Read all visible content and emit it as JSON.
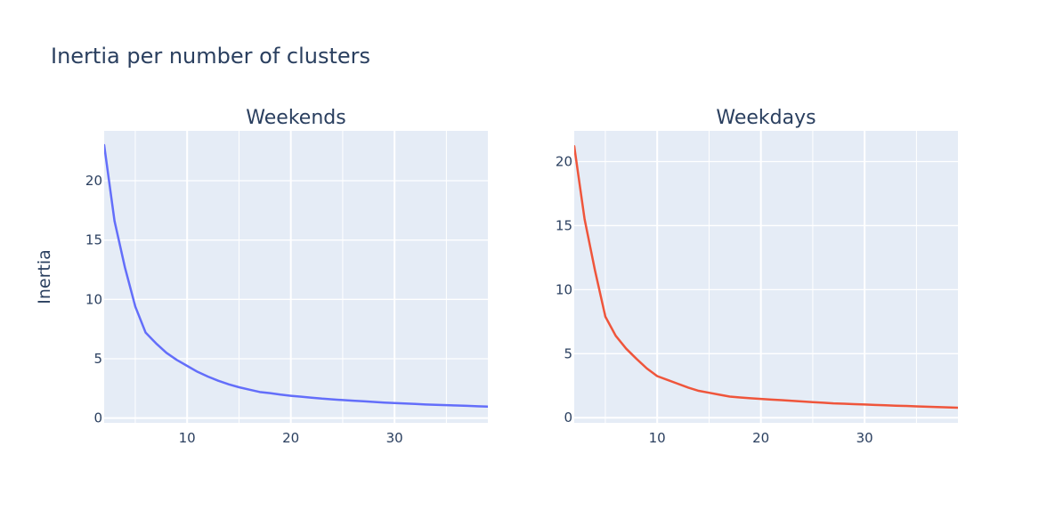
{
  "chart_data": {
    "type": "line",
    "title": "Inertia per number of clusters",
    "ylabel": "Inertia",
    "grid": true,
    "legend": "none",
    "subplots": [
      {
        "title": "Weekends",
        "xlim": [
          2,
          39
        ],
        "ylim": [
          -0.4,
          24.2
        ],
        "xticks": [
          10,
          20,
          30
        ],
        "yticks": [
          0,
          5,
          10,
          15,
          20
        ],
        "series": [
          {
            "color": "#636efa",
            "x": [
              2,
              3,
              4,
              5,
              6,
              7,
              8,
              9,
              10,
              11,
              12,
              13,
              14,
              15,
              16,
              17,
              18,
              19,
              20,
              21,
              22,
              23,
              24,
              25,
              26,
              27,
              28,
              29,
              30,
              31,
              32,
              33,
              34,
              35,
              36,
              37,
              38,
              39
            ],
            "y": [
              23.0,
              16.6,
              12.7,
              9.4,
              7.2,
              6.3,
              5.5,
              4.9,
              4.4,
              3.9,
              3.5,
              3.15,
              2.85,
              2.6,
              2.4,
              2.2,
              2.1,
              1.98,
              1.88,
              1.8,
              1.72,
              1.64,
              1.58,
              1.52,
              1.47,
              1.42,
              1.36,
              1.31,
              1.27,
              1.23,
              1.19,
              1.15,
              1.12,
              1.09,
              1.06,
              1.03,
              1.0,
              0.97
            ]
          }
        ]
      },
      {
        "title": "Weekdays",
        "xlim": [
          2,
          39
        ],
        "ylim": [
          -0.4,
          22.4
        ],
        "xticks": [
          10,
          20,
          30
        ],
        "yticks": [
          0,
          5,
          10,
          15,
          20
        ],
        "series": [
          {
            "color": "#ef553b",
            "x": [
              2,
              3,
              4,
              5,
              6,
              7,
              8,
              9,
              10,
              11,
              12,
              13,
              14,
              15,
              16,
              17,
              18,
              19,
              20,
              21,
              22,
              23,
              24,
              25,
              26,
              27,
              28,
              29,
              30,
              31,
              32,
              33,
              34,
              35,
              36,
              37,
              38,
              39
            ],
            "y": [
              21.2,
              15.5,
              11.5,
              7.9,
              6.4,
              5.4,
              4.6,
              3.85,
              3.25,
              2.95,
              2.65,
              2.35,
              2.1,
              1.95,
              1.8,
              1.65,
              1.58,
              1.52,
              1.47,
              1.42,
              1.37,
              1.32,
              1.27,
              1.22,
              1.17,
              1.12,
              1.09,
              1.06,
              1.03,
              1.0,
              0.97,
              0.94,
              0.92,
              0.89,
              0.86,
              0.83,
              0.81,
              0.78
            ]
          }
        ]
      }
    ]
  }
}
